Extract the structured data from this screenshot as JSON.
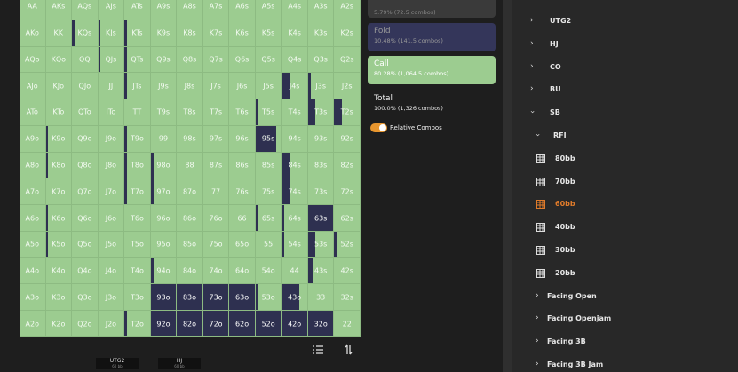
{
  "grid": {
    "rows": [
      [
        "AA",
        "AKs",
        "AQs",
        "AJs",
        "ATs",
        "A9s",
        "A8s",
        "A7s",
        "A6s",
        "A5s",
        "A4s",
        "A3s",
        "A2s"
      ],
      [
        "AKo",
        "KK",
        "KQs",
        "KJs",
        "KTs",
        "K9s",
        "K8s",
        "K7s",
        "K6s",
        "K5s",
        "K4s",
        "K3s",
        "K2s"
      ],
      [
        "AQo",
        "KQo",
        "QQ",
        "QJs",
        "QTs",
        "Q9s",
        "Q8s",
        "Q7s",
        "Q6s",
        "Q5s",
        "Q4s",
        "Q3s",
        "Q2s"
      ],
      [
        "AJo",
        "KJo",
        "QJo",
        "JJ",
        "JTs",
        "J9s",
        "J8s",
        "J7s",
        "J6s",
        "J5s",
        "J4s",
        "J3s",
        "J2s"
      ],
      [
        "ATo",
        "KTo",
        "QTo",
        "JTo",
        "TT",
        "T9s",
        "T8s",
        "T7s",
        "T6s",
        "T5s",
        "T4s",
        "T3s",
        "T2s"
      ],
      [
        "A9o",
        "K9o",
        "Q9o",
        "J9o",
        "T9o",
        "99",
        "98s",
        "97s",
        "96s",
        "95s",
        "94s",
        "93s",
        "92s"
      ],
      [
        "A8o",
        "K8o",
        "Q8o",
        "J8o",
        "T8o",
        "98o",
        "88",
        "87s",
        "86s",
        "85s",
        "84s",
        "83s",
        "82s"
      ],
      [
        "A7o",
        "K7o",
        "Q7o",
        "J7o",
        "T7o",
        "97o",
        "87o",
        "77",
        "76s",
        "75s",
        "74s",
        "73s",
        "72s"
      ],
      [
        "A6o",
        "K6o",
        "Q6o",
        "J6o",
        "T6o",
        "96o",
        "86o",
        "76o",
        "66",
        "65s",
        "64s",
        "63s",
        "62s"
      ],
      [
        "A5o",
        "K5o",
        "Q5o",
        "J5o",
        "T5o",
        "95o",
        "85o",
        "75o",
        "65o",
        "55",
        "54s",
        "53s",
        "52s"
      ],
      [
        "A4o",
        "K4o",
        "Q4o",
        "J4o",
        "T4o",
        "94o",
        "84o",
        "74o",
        "64o",
        "54o",
        "44",
        "43s",
        "42s"
      ],
      [
        "A3o",
        "K3o",
        "Q3o",
        "J3o",
        "T3o",
        "93o",
        "83o",
        "73o",
        "63o",
        "53o",
        "43o",
        "33",
        "32s"
      ],
      [
        "A2o",
        "K2o",
        "Q2o",
        "J2o",
        "T2o",
        "92o",
        "82o",
        "72o",
        "62o",
        "52o",
        "42o",
        "32o",
        "22"
      ]
    ],
    "fold": [
      [
        0,
        0,
        0,
        0,
        0,
        0,
        0,
        0,
        0,
        0,
        0,
        0,
        0
      ],
      [
        0,
        0,
        0.15,
        0.1,
        0.1,
        0,
        0,
        0,
        0,
        0,
        0,
        0,
        0
      ],
      [
        0,
        0,
        0,
        0.1,
        0.1,
        0,
        0,
        0,
        0,
        0,
        0,
        0,
        0
      ],
      [
        0,
        0,
        0,
        0,
        0.1,
        0,
        0,
        0,
        0,
        0,
        0.3,
        0.1,
        0
      ],
      [
        0,
        0,
        0,
        0,
        0,
        0,
        0,
        0,
        0,
        0.1,
        0,
        0.3,
        0.3
      ],
      [
        0,
        0.1,
        0,
        0,
        0.1,
        0,
        0,
        0,
        0,
        0.8,
        0,
        0,
        0
      ],
      [
        0,
        0.1,
        0,
        0,
        0.1,
        0.1,
        0,
        0,
        0,
        0,
        0.3,
        0,
        0
      ],
      [
        0,
        0,
        0,
        0,
        0.1,
        0.1,
        0,
        0,
        0,
        0,
        0.3,
        0,
        0
      ],
      [
        0,
        0.1,
        0,
        0,
        0,
        0,
        0,
        0,
        0,
        0.1,
        0.1,
        1,
        0
      ],
      [
        0,
        0.1,
        0,
        0,
        0,
        0,
        0,
        0,
        0,
        0,
        0.1,
        0.3,
        0.1
      ],
      [
        0,
        0,
        0,
        0,
        0,
        0.1,
        0,
        0,
        0,
        0,
        0,
        0.2,
        0
      ],
      [
        0,
        0,
        0,
        0,
        0,
        1,
        1,
        1,
        1,
        0.1,
        0.7,
        0,
        0
      ],
      [
        0,
        0,
        0,
        0,
        0.1,
        1,
        1,
        1,
        1,
        1,
        1,
        1,
        0
      ]
    ]
  },
  "actions": {
    "top_partial": "5.79% (72.5 combos)",
    "fold": {
      "name": "Fold",
      "detail": "10.48% (141.5 combos)"
    },
    "call": {
      "name": "Call",
      "detail": "80.28% (1,064.5 combos)"
    },
    "total": {
      "name": "Total",
      "detail": "100.0% (1,326 combos)"
    },
    "toggle": "Relative Combos"
  },
  "tree": {
    "positions": [
      "UTG2",
      "HJ",
      "CO",
      "BU",
      "SB"
    ],
    "sb_children": [
      "RFI"
    ],
    "rfi_children": [
      "80bb",
      "70bb",
      "60bb",
      "40bb",
      "30bb",
      "20bb"
    ],
    "active_index": 2,
    "sb_more": [
      "Facing Open",
      "Facing Openjam",
      "Facing 3B",
      "Facing 3B Jam"
    ]
  },
  "bottom_tabs": [
    {
      "label": "UTG2",
      "sub": "60 bb"
    },
    {
      "label": "HJ",
      "sub": "60 bb"
    }
  ]
}
